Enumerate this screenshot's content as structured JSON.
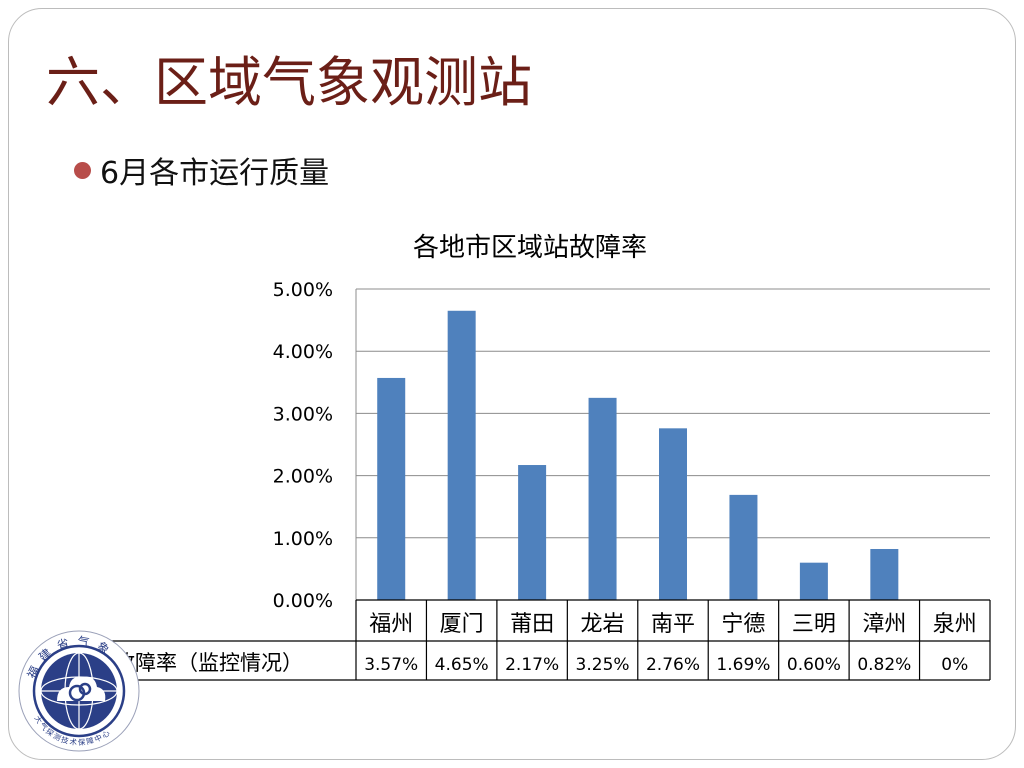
{
  "slide": {
    "title": "六、区域气象观测站",
    "bullet": "6月各市运行质量",
    "colors": {
      "title": "#6b1f17",
      "bullet": "#b84d4a",
      "bar": "#4f81bd",
      "logo": "#2b3f87"
    }
  },
  "logo": {
    "icon": "meteorological-bureau-logo-icon",
    "top_text": "福建省气象",
    "bottom_text": "大气探测技术保障中心"
  },
  "chart_data": {
    "type": "bar",
    "title": "各地市区域站故障率",
    "categories": [
      "福州",
      "厦门",
      "莆田",
      "龙岩",
      "南平",
      "宁德",
      "三明",
      "漳州",
      "泉州"
    ],
    "series": [
      {
        "name": "故障率（监控情况）",
        "values": [
          3.57,
          4.65,
          2.17,
          3.25,
          2.76,
          1.69,
          0.6,
          0.82,
          0
        ],
        "labels": [
          "3.57%",
          "4.65%",
          "2.17%",
          "3.25%",
          "2.76%",
          "1.69%",
          "0.60%",
          "0.82%",
          "0%"
        ]
      }
    ],
    "y_ticks": [
      "0.00%",
      "1.00%",
      "2.00%",
      "3.00%",
      "4.00%",
      "5.00%"
    ],
    "ylim": [
      0,
      5
    ],
    "y_unit": "%",
    "grid": true,
    "legend": "data-table-row"
  }
}
